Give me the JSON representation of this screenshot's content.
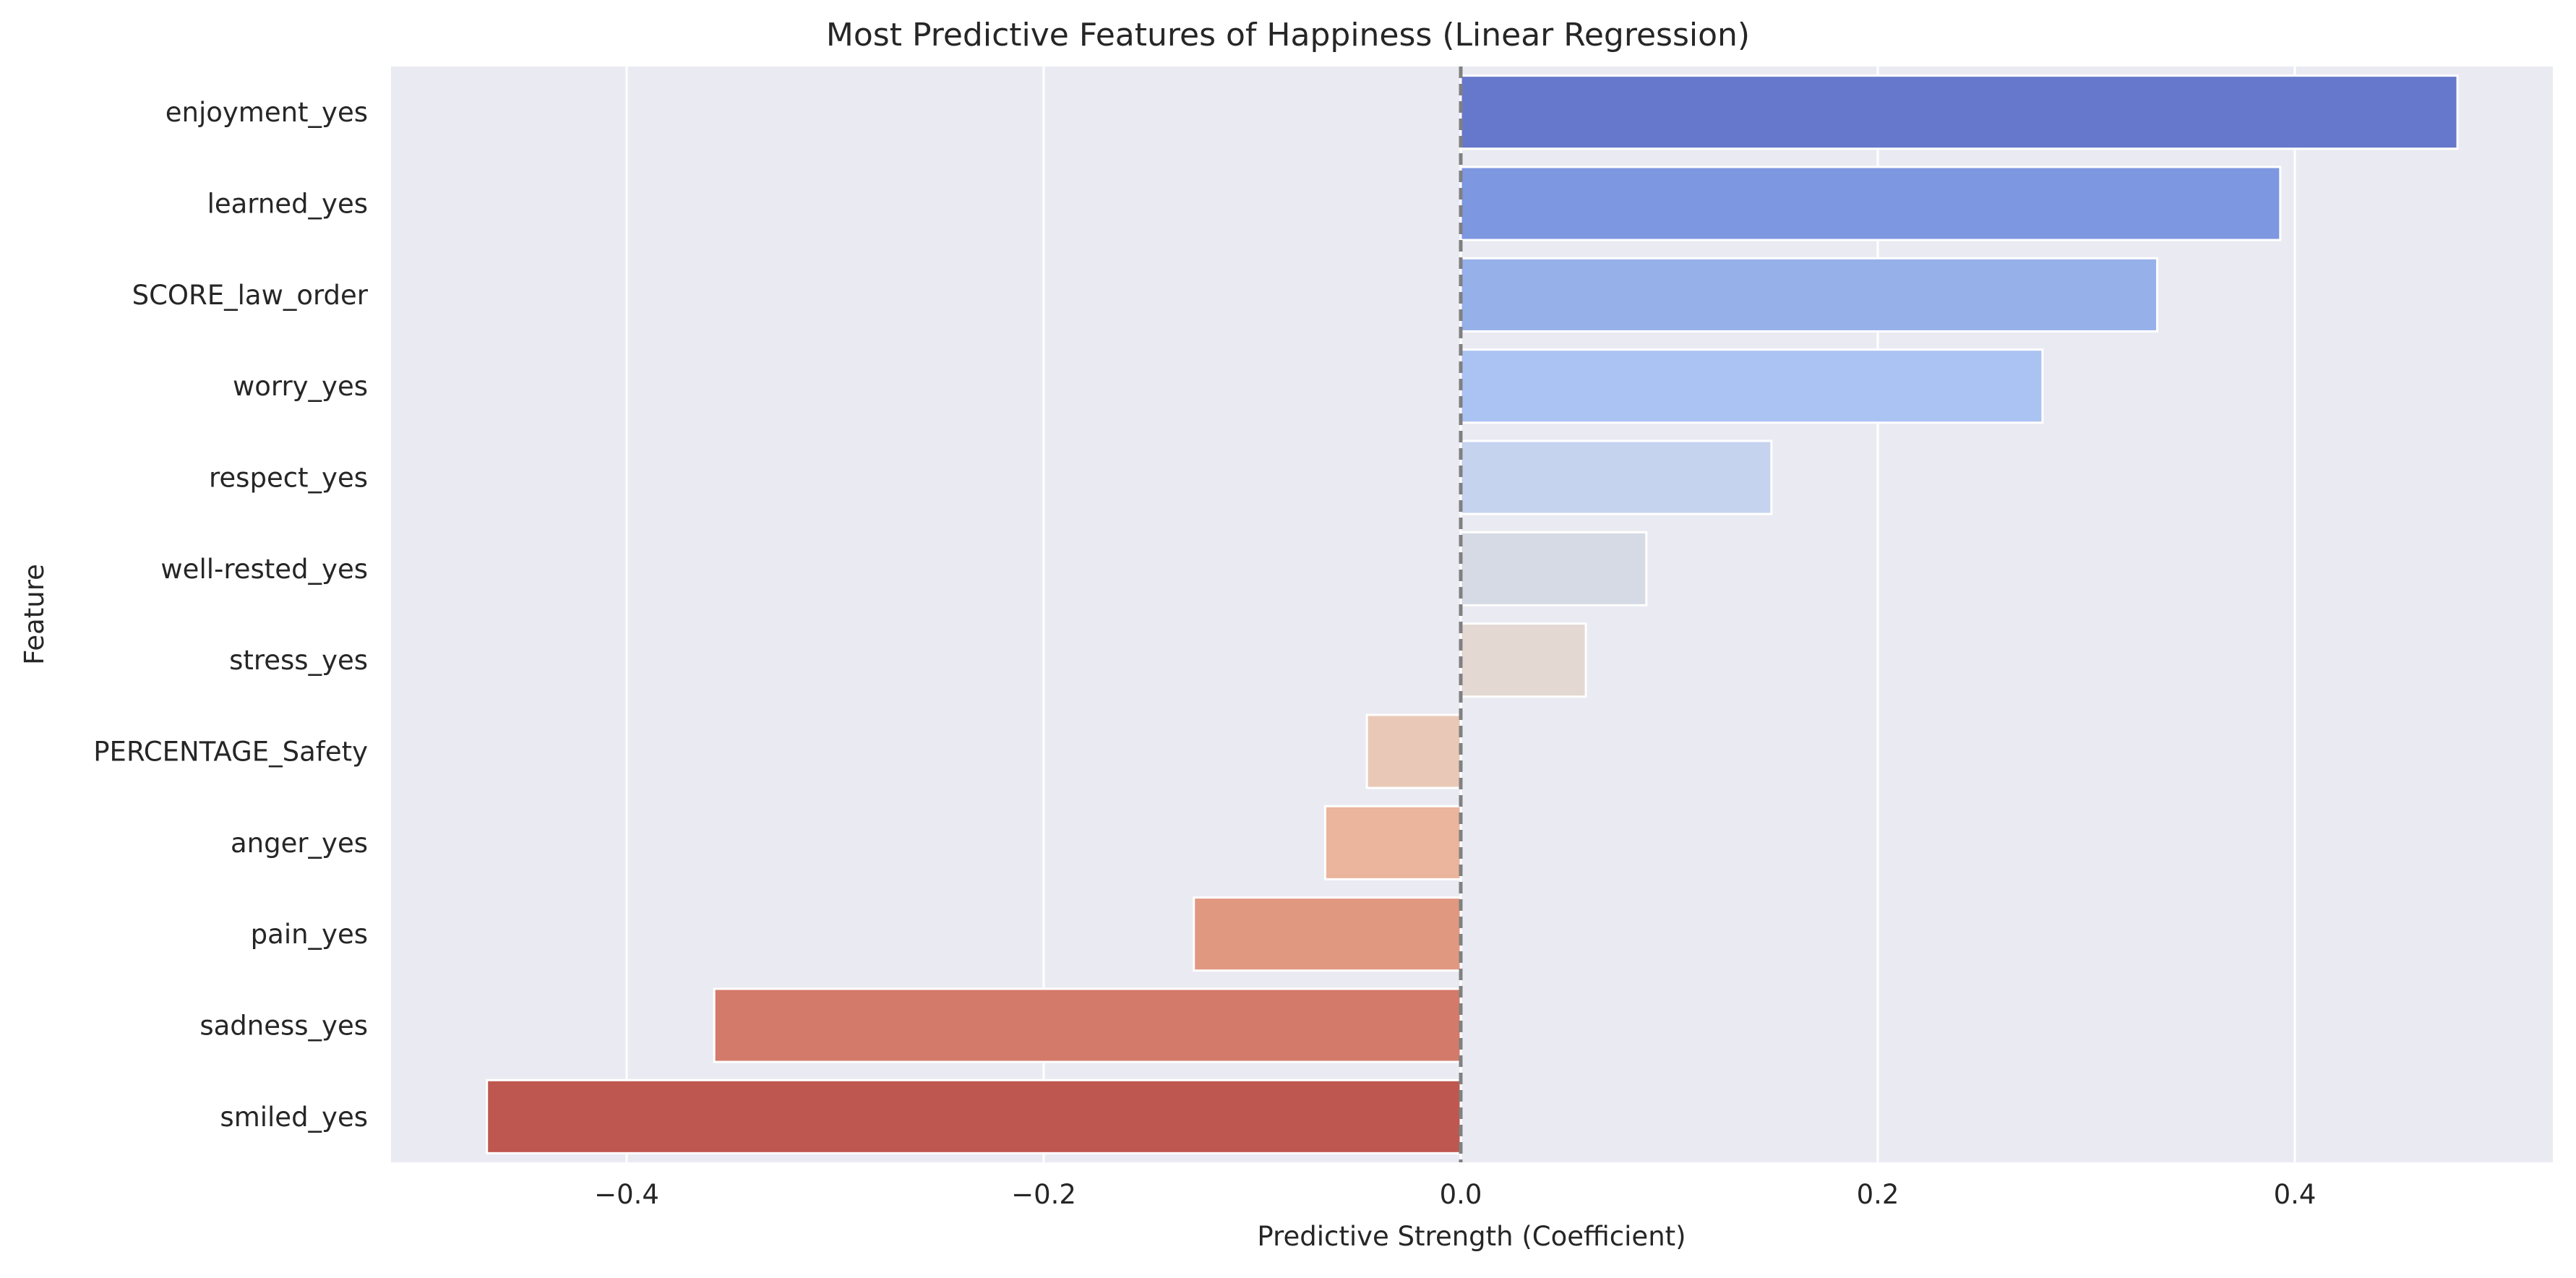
{
  "chart_data": {
    "type": "bar",
    "orientation": "horizontal",
    "title": "Most Predictive Features of Happiness (Linear Regression)",
    "xlabel": "Predictive Strength (Coefficient)",
    "ylabel": "Feature",
    "xlim": [
      -0.52,
      0.52
    ],
    "xticks": [
      -0.4,
      -0.2,
      0.0,
      0.2,
      0.4
    ],
    "xtick_labels": [
      "−0.4",
      "−0.2",
      "0.0",
      "0.2",
      "0.4"
    ],
    "grid": true,
    "reference_line": {
      "x": 0.0,
      "style": "dashed",
      "color": "#808080"
    },
    "background": "#eaeaf2",
    "categories": [
      "enjoyment_yes",
      "learned_yes",
      "SCORE_law_order",
      "worry_yes",
      "respect_yes",
      "well-rested_yes",
      "stress_yes",
      "PERCENTAGE_Safety",
      "anger_yes",
      "pain_yes",
      "sadness_yes",
      "smiled_yes"
    ],
    "values": [
      0.478,
      0.393,
      0.334,
      0.279,
      0.149,
      0.089,
      0.06,
      -0.045,
      -0.065,
      -0.128,
      -0.358,
      -0.467
    ],
    "colors": [
      "#6578cb",
      "#7d97e1",
      "#96b0ea",
      "#abc3f3",
      "#c5d3ef",
      "#d5dae4",
      "#e3d8d2",
      "#eac8b7",
      "#ebb49c",
      "#e19880",
      "#d47a6a",
      "#be5750"
    ]
  }
}
